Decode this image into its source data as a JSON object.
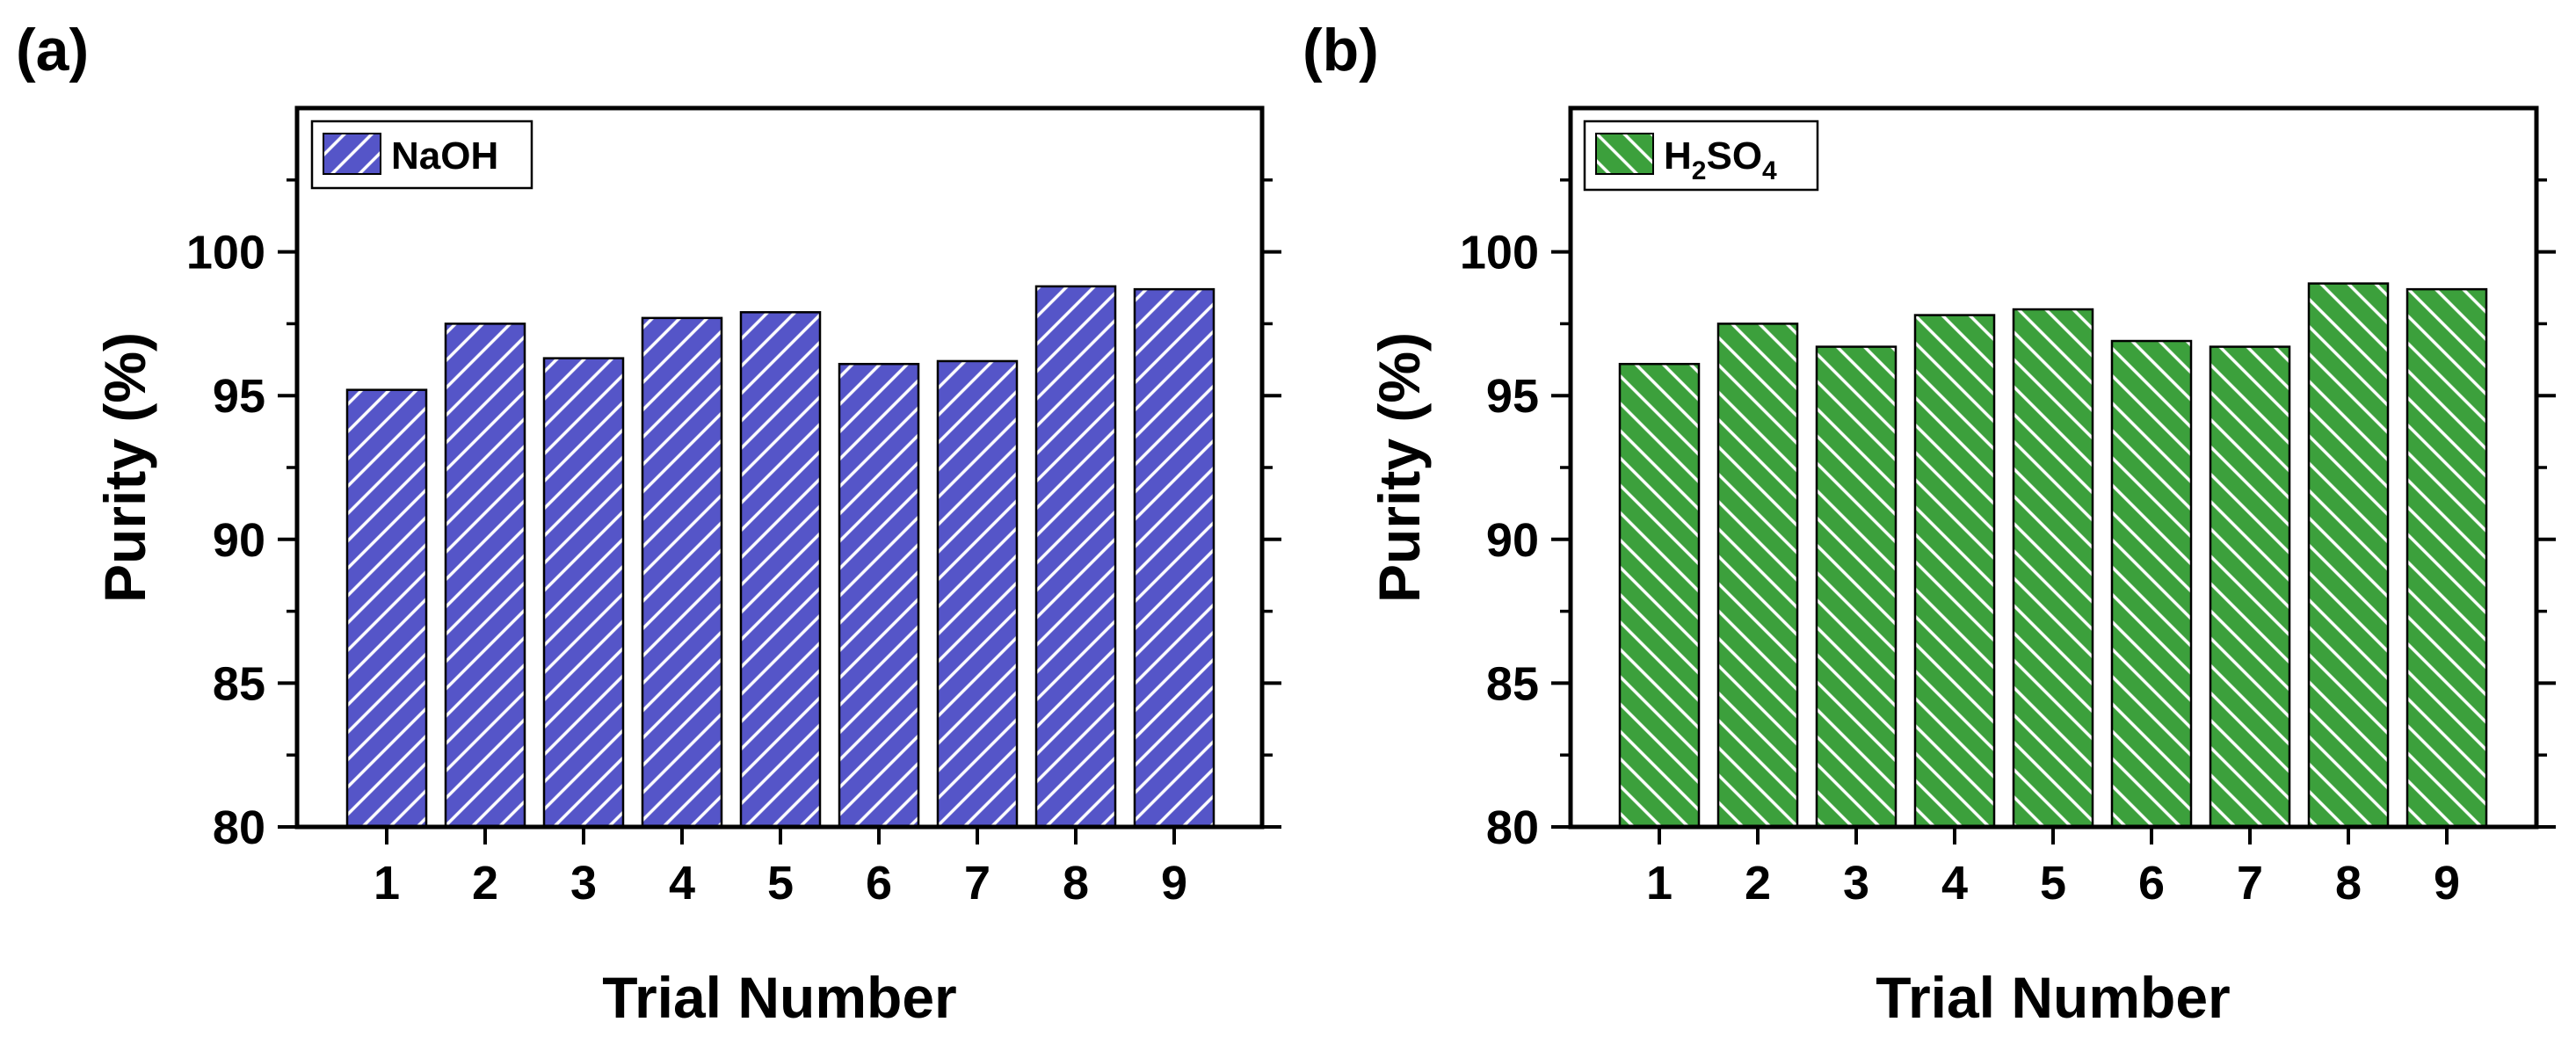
{
  "panels": [
    {
      "panel_label": "(a)",
      "legend_label": "NaOH",
      "color": "#5555C8",
      "hatch": "forward"
    },
    {
      "panel_label": "(b)",
      "legend_label": "H2SO4",
      "legend_parts": {
        "main": "H",
        "sub1": "2",
        "mid": "SO",
        "sub2": "4"
      },
      "color": "#3CA03C",
      "hatch": "back"
    }
  ],
  "chart_data": [
    {
      "type": "bar",
      "title": "(a)",
      "categories": [
        "1",
        "2",
        "3",
        "4",
        "5",
        "6",
        "7",
        "8",
        "9"
      ],
      "series": [
        {
          "name": "NaOH",
          "values": [
            95.2,
            97.5,
            96.3,
            97.7,
            97.9,
            96.1,
            96.2,
            98.8,
            98.7
          ]
        }
      ],
      "xlabel": "Trial Number",
      "ylabel": "Purity (%)",
      "ylim": [
        80,
        105
      ],
      "yticks": [
        80,
        85,
        90,
        95,
        100
      ],
      "legend": "top-left"
    },
    {
      "type": "bar",
      "title": "(b)",
      "categories": [
        "1",
        "2",
        "3",
        "4",
        "5",
        "6",
        "7",
        "8",
        "9"
      ],
      "series": [
        {
          "name": "H2SO4",
          "values": [
            96.1,
            97.5,
            96.7,
            97.8,
            98.0,
            96.9,
            96.7,
            98.9,
            98.7
          ]
        }
      ],
      "xlabel": "Trial Number",
      "ylabel": "Purity (%)",
      "ylim": [
        80,
        105
      ],
      "yticks": [
        80,
        85,
        90,
        95,
        100
      ],
      "legend": "top-left"
    }
  ]
}
